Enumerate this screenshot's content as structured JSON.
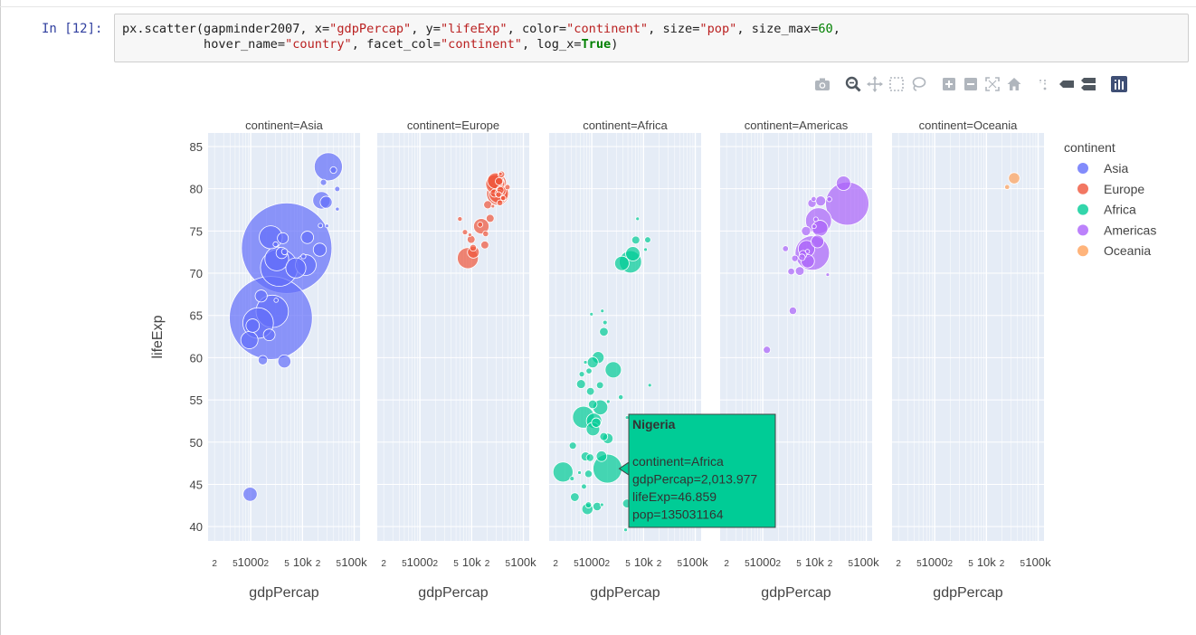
{
  "cell": {
    "prompt": "In [12]:",
    "code_line1": "px.scatter(gapminder2007, x=\"gdpPercap\", y=\"lifeExp\", color=\"continent\", size=\"pop\", size_max=60,",
    "code_line2": "           hover_name=\"country\", facet_col=\"continent\", log_x=True)"
  },
  "modebar": {
    "icons": [
      "camera-icon",
      "zoom-icon",
      "pan-icon",
      "box-select-icon",
      "lasso-select-icon",
      "zoom-in-icon",
      "zoom-out-icon",
      "autoscale-icon",
      "reset-axes-icon",
      "spike-lines-icon",
      "hover-closest-icon",
      "hover-compare-icon",
      "plotly-logo-icon"
    ]
  },
  "colors": {
    "Asia": "#636efa",
    "Europe": "#ef553b",
    "Africa": "#00cc96",
    "Americas": "#ab63fa",
    "Oceania": "#ffa15a",
    "plot_bg": "#e5ecf6",
    "axis_text": "#444444"
  },
  "chart_data": {
    "type": "scatter",
    "x_label": "gdpPercap",
    "y_label": "lifeExp",
    "x_scale": "log",
    "x_range": [
      150,
      130000
    ],
    "y_range": [
      38.3,
      86.6
    ],
    "y_ticks": [
      40,
      45,
      50,
      55,
      60,
      65,
      70,
      75,
      80,
      85
    ],
    "x_ticks": [
      {
        "value": 200,
        "label": "2"
      },
      {
        "value": 500,
        "label": "5"
      },
      {
        "value": 1000,
        "label": "1000"
      },
      {
        "value": 2000,
        "label": "2"
      },
      {
        "value": 5000,
        "label": "5"
      },
      {
        "value": 10000,
        "label": "10k"
      },
      {
        "value": 20000,
        "label": "2"
      },
      {
        "value": 50000,
        "label": "5"
      },
      {
        "value": 100000,
        "label": "100k"
      }
    ],
    "legend": {
      "title": "continent",
      "items": [
        "Asia",
        "Europe",
        "Africa",
        "Americas",
        "Oceania"
      ],
      "placement": "right"
    },
    "facets": [
      {
        "title": "continent=Asia",
        "continent": "Asia",
        "points": [
          {
            "x": 974.58,
            "y": 43.83,
            "pop": 31889923
          },
          {
            "x": 29796,
            "y": 75.6,
            "pop": 708573
          },
          {
            "x": 1391,
            "y": 64.1,
            "pop": 150448339
          },
          {
            "x": 1714,
            "y": 59.7,
            "pop": 14131858
          },
          {
            "x": 4959,
            "y": 72.96,
            "pop": 1318683096
          },
          {
            "x": 39725,
            "y": 82.21,
            "pop": 6980412
          },
          {
            "x": 2452,
            "y": 64.7,
            "pop": 1110396331
          },
          {
            "x": 3540,
            "y": 70.65,
            "pop": 223547000
          },
          {
            "x": 11606,
            "y": 70.96,
            "pop": 69453570
          },
          {
            "x": 4471,
            "y": 59.55,
            "pop": 27499638
          },
          {
            "x": 25523,
            "y": 80.75,
            "pop": 6426679
          },
          {
            "x": 31656,
            "y": 82.6,
            "pop": 127467972
          },
          {
            "x": 4519,
            "y": 72.54,
            "pop": 6053193
          },
          {
            "x": 1593,
            "y": 67.3,
            "pop": 23301725
          },
          {
            "x": 23348,
            "y": 78.62,
            "pop": 49044790
          },
          {
            "x": 47307,
            "y": 77.59,
            "pop": 2505559
          },
          {
            "x": 10461,
            "y": 71.99,
            "pop": 3921278
          },
          {
            "x": 12452,
            "y": 74.24,
            "pop": 24821286
          },
          {
            "x": 3096,
            "y": 66.8,
            "pop": 2874127
          },
          {
            "x": 944,
            "y": 62.07,
            "pop": 47761980
          },
          {
            "x": 1091,
            "y": 63.79,
            "pop": 28901790
          },
          {
            "x": 22316,
            "y": 75.64,
            "pop": 3204897
          },
          {
            "x": 2606,
            "y": 65.48,
            "pop": 169270617
          },
          {
            "x": 3190,
            "y": 71.69,
            "pop": 91077287
          },
          {
            "x": 21655,
            "y": 72.78,
            "pop": 27601038
          },
          {
            "x": 47143,
            "y": 79.97,
            "pop": 4553009
          },
          {
            "x": 3970,
            "y": 72.4,
            "pop": 20378239
          },
          {
            "x": 4185,
            "y": 74.14,
            "pop": 19314747
          },
          {
            "x": 28718,
            "y": 78.4,
            "pop": 23174294
          },
          {
            "x": 7458,
            "y": 70.62,
            "pop": 65068149
          },
          {
            "x": 2442,
            "y": 74.25,
            "pop": 85262356
          },
          {
            "x": 3025,
            "y": 73.42,
            "pop": 4018332
          },
          {
            "x": 2281,
            "y": 62.7,
            "pop": 22211743
          }
        ]
      },
      {
        "title": "continent=Europe",
        "continent": "Europe",
        "points": [
          {
            "x": 5937,
            "y": 76.42,
            "pop": 3600523
          },
          {
            "x": 36126,
            "y": 79.83,
            "pop": 8199783
          },
          {
            "x": 33693,
            "y": 79.44,
            "pop": 10392226
          },
          {
            "x": 7446,
            "y": 74.85,
            "pop": 4552198
          },
          {
            "x": 10681,
            "y": 73.0,
            "pop": 7322858
          },
          {
            "x": 14619,
            "y": 75.75,
            "pop": 4493312
          },
          {
            "x": 22833,
            "y": 76.49,
            "pop": 10228744
          },
          {
            "x": 35278,
            "y": 78.33,
            "pop": 5468120
          },
          {
            "x": 33207,
            "y": 79.31,
            "pop": 5238460
          },
          {
            "x": 30470,
            "y": 80.66,
            "pop": 61083916
          },
          {
            "x": 32170,
            "y": 79.41,
            "pop": 82400996
          },
          {
            "x": 27538,
            "y": 79.48,
            "pop": 10706290
          },
          {
            "x": 18009,
            "y": 73.34,
            "pop": 9956108
          },
          {
            "x": 36181,
            "y": 81.76,
            "pop": 301931
          },
          {
            "x": 40676,
            "y": 78.89,
            "pop": 4109086
          },
          {
            "x": 28570,
            "y": 80.55,
            "pop": 58147733
          },
          {
            "x": 9254,
            "y": 74.54,
            "pop": 684736
          },
          {
            "x": 36798,
            "y": 79.76,
            "pop": 16570613
          },
          {
            "x": 49357,
            "y": 80.2,
            "pop": 4627926
          },
          {
            "x": 15390,
            "y": 75.56,
            "pop": 38518241
          },
          {
            "x": 20510,
            "y": 78.1,
            "pop": 10642836
          },
          {
            "x": 10808,
            "y": 72.48,
            "pop": 22276056
          },
          {
            "x": 9787,
            "y": 74.0,
            "pop": 10150265
          },
          {
            "x": 18678,
            "y": 74.66,
            "pop": 5447502
          },
          {
            "x": 25768,
            "y": 77.93,
            "pop": 2009245
          },
          {
            "x": 28821,
            "y": 80.94,
            "pop": 40448191
          },
          {
            "x": 33860,
            "y": 80.88,
            "pop": 9031088
          },
          {
            "x": 37506,
            "y": 81.7,
            "pop": 7554661
          },
          {
            "x": 8458,
            "y": 71.78,
            "pop": 71158647
          },
          {
            "x": 33203,
            "y": 79.43,
            "pop": 60776238
          }
        ]
      },
      {
        "title": "continent=Africa",
        "continent": "Africa",
        "points": [
          {
            "x": 6223,
            "y": 72.3,
            "pop": 33333216
          },
          {
            "x": 4797,
            "y": 42.73,
            "pop": 12420476
          },
          {
            "x": 1441,
            "y": 56.73,
            "pop": 8078314
          },
          {
            "x": 12570,
            "y": 50.73,
            "pop": 1639131
          },
          {
            "x": 1217,
            "y": 52.3,
            "pop": 14326203
          },
          {
            "x": 430,
            "y": 49.58,
            "pop": 8390505
          },
          {
            "x": 2042,
            "y": 50.43,
            "pop": 17696293
          },
          {
            "x": 706,
            "y": 44.74,
            "pop": 4369038
          },
          {
            "x": 1704,
            "y": 50.65,
            "pop": 10238807
          },
          {
            "x": 986,
            "y": 65.15,
            "pop": 710960
          },
          {
            "x": 278,
            "y": 46.46,
            "pop": 64606759
          },
          {
            "x": 3633,
            "y": 55.32,
            "pop": 3800610
          },
          {
            "x": 1545,
            "y": 48.33,
            "pop": 18013409
          },
          {
            "x": 2082,
            "y": 54.79,
            "pop": 496374
          },
          {
            "x": 5581,
            "y": 71.34,
            "pop": 80264543
          },
          {
            "x": 12154,
            "y": 51.58,
            "pop": 551201
          },
          {
            "x": 641,
            "y": 58.04,
            "pop": 4906585
          },
          {
            "x": 691,
            "y": 52.95,
            "pop": 76511887
          },
          {
            "x": 13206,
            "y": 56.73,
            "pop": 1454867
          },
          {
            "x": 753,
            "y": 59.45,
            "pop": 1688359
          },
          {
            "x": 1328,
            "y": 60.02,
            "pop": 22873338
          },
          {
            "x": 943,
            "y": 56.01,
            "pop": 9947814
          },
          {
            "x": 579,
            "y": 46.39,
            "pop": 1472041
          },
          {
            "x": 1463,
            "y": 54.11,
            "pop": 35610177
          },
          {
            "x": 1569,
            "y": 42.59,
            "pop": 2012649
          },
          {
            "x": 415,
            "y": 45.68,
            "pop": 3193942
          },
          {
            "x": 12057,
            "y": 73.95,
            "pop": 6036914
          },
          {
            "x": 1045,
            "y": 59.44,
            "pop": 19167654
          },
          {
            "x": 759,
            "y": 48.3,
            "pop": 13327079
          },
          {
            "x": 1043,
            "y": 54.47,
            "pop": 12031795
          },
          {
            "x": 1803,
            "y": 64.16,
            "pop": 3270065
          },
          {
            "x": 10957,
            "y": 72.8,
            "pop": 1250882
          },
          {
            "x": 3820,
            "y": 71.16,
            "pop": 33757175
          },
          {
            "x": 824,
            "y": 42.08,
            "pop": 19951656
          },
          {
            "x": 4811,
            "y": 52.91,
            "pop": 2055080
          },
          {
            "x": 620,
            "y": 56.87,
            "pop": 12894865
          },
          {
            "x": 2014,
            "y": 46.86,
            "pop": 135031164
          },
          {
            "x": 7670,
            "y": 76.44,
            "pop": 798094
          },
          {
            "x": 863,
            "y": 46.24,
            "pop": 8860588
          },
          {
            "x": 1598,
            "y": 65.53,
            "pop": 199579
          },
          {
            "x": 1712,
            "y": 63.06,
            "pop": 12267493
          },
          {
            "x": 862,
            "y": 42.57,
            "pop": 6144562
          },
          {
            "x": 926,
            "y": 48.16,
            "pop": 9118773
          },
          {
            "x": 9270,
            "y": 49.34,
            "pop": 43997828
          },
          {
            "x": 2602,
            "y": 58.56,
            "pop": 42292929
          },
          {
            "x": 4513,
            "y": 39.61,
            "pop": 1133066
          },
          {
            "x": 1107,
            "y": 52.52,
            "pop": 38139640
          },
          {
            "x": 883,
            "y": 58.42,
            "pop": 5701579
          },
          {
            "x": 7093,
            "y": 73.92,
            "pop": 10276158
          },
          {
            "x": 1056,
            "y": 51.54,
            "pop": 29170398
          },
          {
            "x": 1271,
            "y": 42.38,
            "pop": 11746035
          },
          {
            "x": 470,
            "y": 43.49,
            "pop": 12311143
          }
        ]
      },
      {
        "title": "continent=Americas",
        "continent": "Americas",
        "points": [
          {
            "x": 12779,
            "y": 75.32,
            "pop": 40301927
          },
          {
            "x": 3822,
            "y": 65.55,
            "pop": 9119152
          },
          {
            "x": 9066,
            "y": 72.39,
            "pop": 190010647
          },
          {
            "x": 36319,
            "y": 80.65,
            "pop": 33390141
          },
          {
            "x": 13172,
            "y": 78.55,
            "pop": 16284741
          },
          {
            "x": 7007,
            "y": 72.89,
            "pop": 44227550
          },
          {
            "x": 9645,
            "y": 78.78,
            "pop": 4133884
          },
          {
            "x": 8948,
            "y": 78.27,
            "pop": 11416987
          },
          {
            "x": 6025,
            "y": 72.24,
            "pop": 9319622
          },
          {
            "x": 6873,
            "y": 74.99,
            "pop": 13755680
          },
          {
            "x": 5728,
            "y": 71.88,
            "pop": 6939688
          },
          {
            "x": 5186,
            "y": 70.26,
            "pop": 12572928
          },
          {
            "x": 1202,
            "y": 60.92,
            "pop": 8502814
          },
          {
            "x": 3548,
            "y": 70.2,
            "pop": 7483763
          },
          {
            "x": 7321,
            "y": 72.57,
            "pop": 2780132
          },
          {
            "x": 11978,
            "y": 76.2,
            "pop": 108700891
          },
          {
            "x": 2749,
            "y": 72.9,
            "pop": 5675356
          },
          {
            "x": 9809,
            "y": 75.54,
            "pop": 3242173
          },
          {
            "x": 4173,
            "y": 71.75,
            "pop": 6667147
          },
          {
            "x": 7409,
            "y": 71.42,
            "pop": 28674757
          },
          {
            "x": 19329,
            "y": 78.75,
            "pop": 3942491
          },
          {
            "x": 18009,
            "y": 69.82,
            "pop": 1056608
          },
          {
            "x": 42952,
            "y": 78.24,
            "pop": 301139947
          },
          {
            "x": 10611,
            "y": 76.38,
            "pop": 3447496
          },
          {
            "x": 11416,
            "y": 73.75,
            "pop": 26084662
          }
        ]
      },
      {
        "title": "continent=Oceania",
        "continent": "Oceania",
        "points": [
          {
            "x": 34435,
            "y": 81.24,
            "pop": 20434176
          },
          {
            "x": 25185,
            "y": 80.2,
            "pop": 4115771
          }
        ]
      }
    ],
    "hover": {
      "facet": 2,
      "x": 2013.977,
      "y": 46.859,
      "title": "Nigeria",
      "lines": [
        "continent=Africa",
        "gdpPercap=2,013.977",
        "lifeExp=46.859",
        "pop=135031164"
      ]
    }
  }
}
